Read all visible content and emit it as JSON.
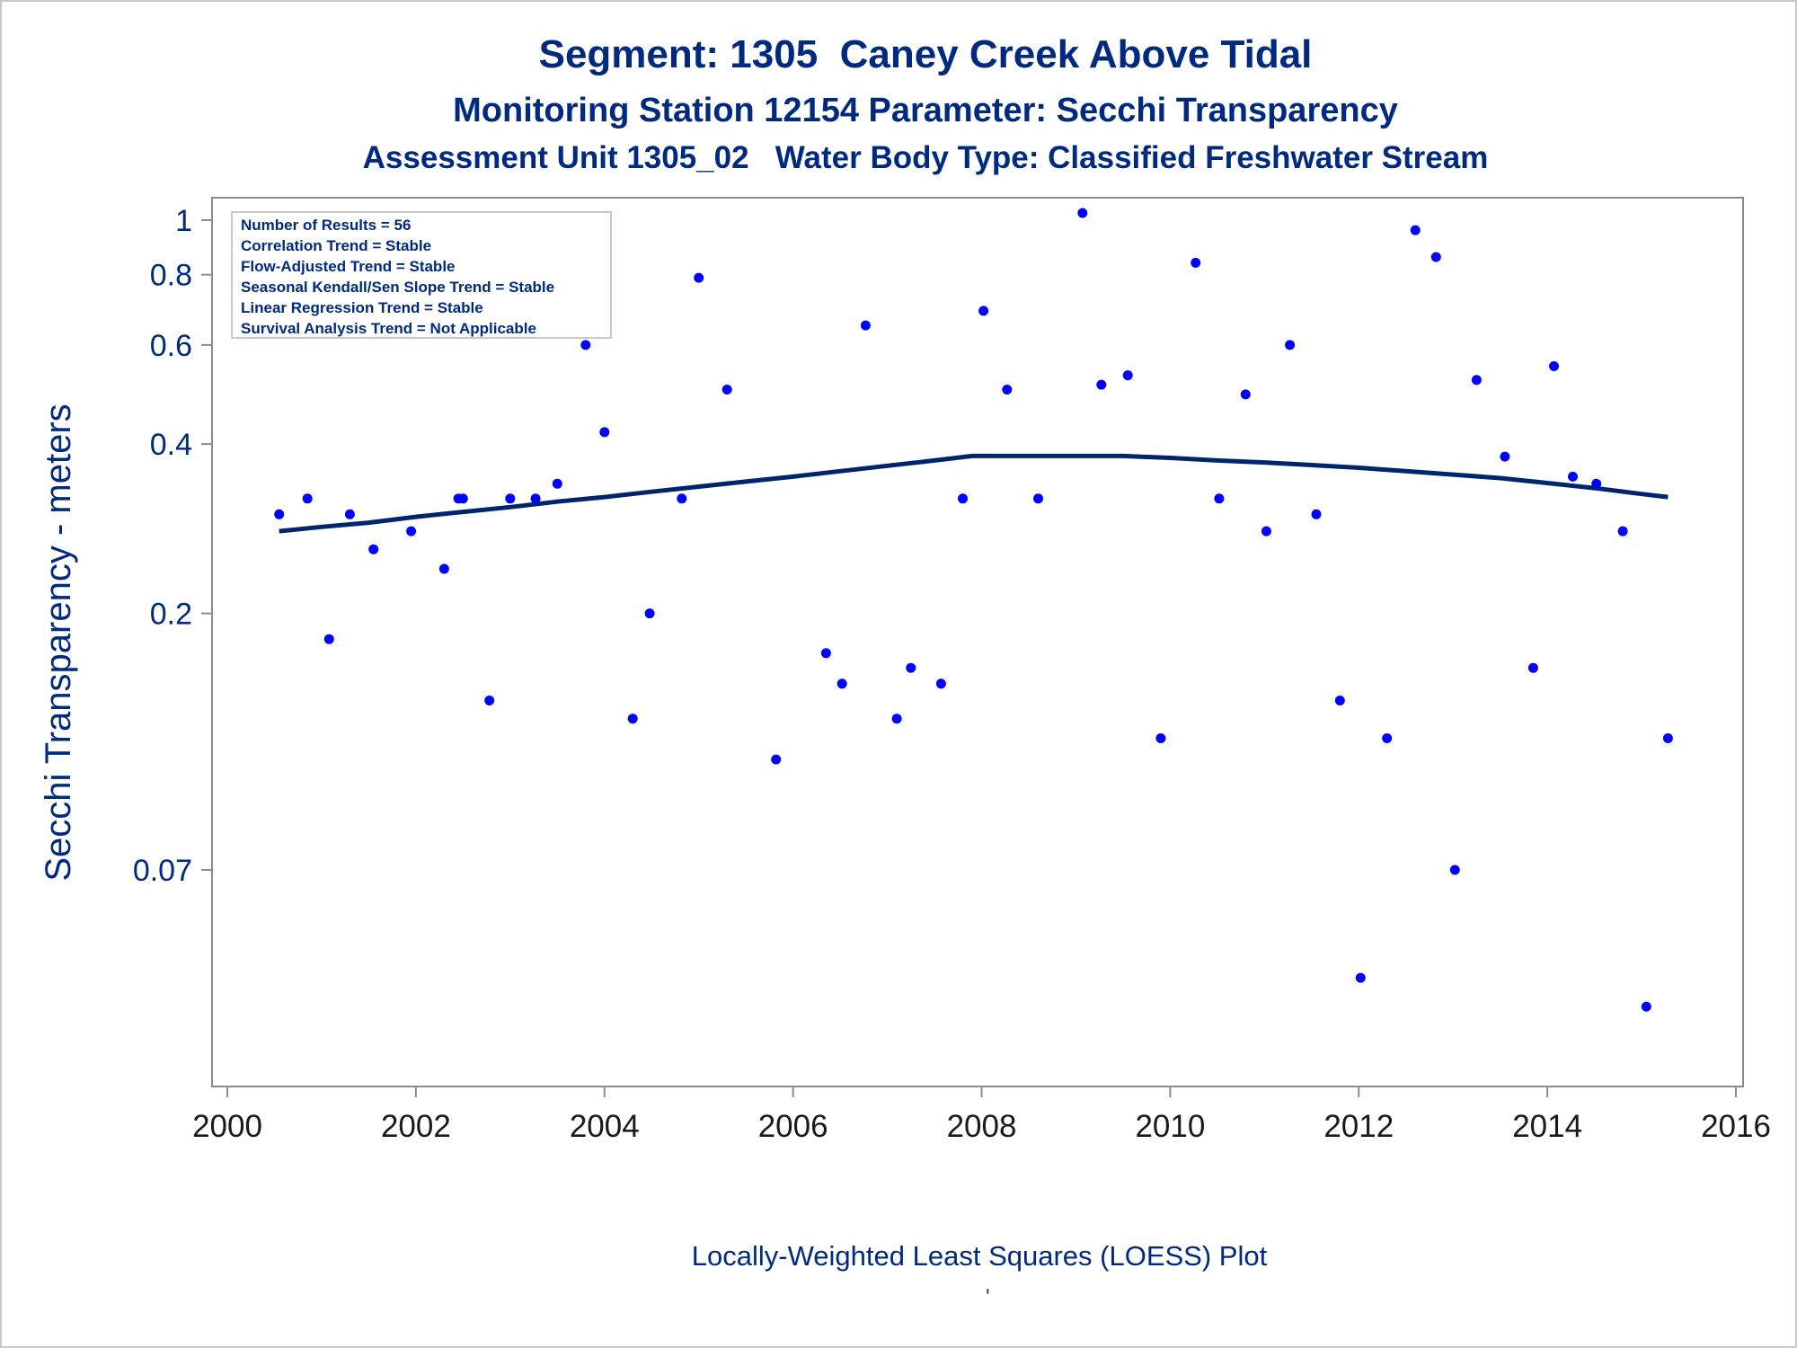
{
  "titles": {
    "line1": "Segment: 1305  Caney Creek Above Tidal",
    "line2": "Monitoring Station 12154 Parameter: Secchi Transparency",
    "line3": "Assessment Unit 1305_02   Water Body Type: Classified Freshwater Stream"
  },
  "footnote": "Locally-Weighted Least Squares (LOESS) Plot",
  "footnote_mark": "'",
  "colors": {
    "text": "#002a7f",
    "points": "#0000ff",
    "loess": "#00256e",
    "axis": "#8c8c8c"
  },
  "chart_data": {
    "type": "scatter",
    "xlabel": "",
    "ylabel": "Secchi Transparency - meters",
    "x_scale": "linear",
    "y_scale": "log",
    "xlim": [
      2000,
      2016
    ],
    "ylim": [
      0.04,
      1.05
    ],
    "x_ticks": [
      2000,
      2002,
      2004,
      2006,
      2008,
      2010,
      2012,
      2014,
      2016
    ],
    "y_ticks": [
      1,
      0.8,
      0.6,
      0.4,
      0.2,
      0.07
    ],
    "y_tick_labels": [
      "1",
      "0.8",
      "0.6",
      "0.4",
      "0.2",
      "0.07"
    ],
    "grid": false,
    "legend_position": "top-left",
    "stats_box": [
      "Number of Results = 56",
      "Correlation Trend = Stable",
      "Flow-Adjusted Trend = Stable",
      "Seasonal Kendall/Sen Slope Trend = Stable",
      "Linear Regression Trend = Stable",
      "Survival Analysis Trend = Not Applicable"
    ],
    "series": [
      {
        "kind": "points",
        "x": [
          2000.55,
          2000.85,
          2001.08,
          2001.3,
          2001.55,
          2001.95,
          2002.3,
          2002.45,
          2002.5,
          2002.78,
          2003.0,
          2003.27,
          2003.5,
          2003.8,
          2004.0,
          2004.3,
          2004.48,
          2004.82,
          2005.0,
          2005.3,
          2005.82,
          2006.35,
          2006.52,
          2006.77,
          2007.1,
          2007.25,
          2007.57,
          2007.8,
          2008.02,
          2008.27,
          2008.6,
          2009.07,
          2009.27,
          2009.55,
          2009.9,
          2010.27,
          2010.52,
          2010.8,
          2011.02,
          2011.27,
          2011.55,
          2011.8,
          2012.02,
          2012.3,
          2012.6,
          2012.82,
          2013.02,
          2013.25,
          2013.55,
          2013.85,
          2014.07,
          2014.27,
          2014.52,
          2014.8,
          2015.05,
          2015.28
        ],
        "y": [
          0.3,
          0.32,
          0.18,
          0.3,
          0.26,
          0.28,
          0.24,
          0.32,
          0.32,
          0.14,
          0.32,
          0.32,
          0.34,
          0.6,
          0.42,
          0.13,
          0.2,
          0.32,
          0.79,
          0.5,
          0.11,
          0.17,
          0.15,
          0.65,
          0.13,
          0.16,
          0.15,
          0.32,
          0.69,
          0.5,
          0.32,
          1.03,
          0.51,
          0.53,
          0.12,
          0.84,
          0.32,
          0.49,
          0.28,
          0.6,
          0.3,
          0.14,
          0.045,
          0.12,
          0.96,
          0.86,
          0.07,
          0.52,
          0.38,
          0.16,
          0.55,
          0.35,
          0.34,
          0.28,
          0.04,
          0.12
        ]
      },
      {
        "kind": "loess",
        "x": [
          2000.55,
          2001.0,
          2001.5,
          2002.0,
          2002.5,
          2003.0,
          2003.5,
          2004.0,
          2004.5,
          2005.0,
          2005.5,
          2006.0,
          2006.5,
          2007.0,
          2007.5,
          2007.9,
          2008.5,
          2009.0,
          2009.5,
          2010.0,
          2010.5,
          2011.0,
          2011.5,
          2012.0,
          2012.5,
          2013.0,
          2013.5,
          2014.0,
          2014.5,
          2015.0,
          2015.28
        ],
        "y": [
          0.28,
          0.285,
          0.29,
          0.297,
          0.303,
          0.309,
          0.316,
          0.322,
          0.329,
          0.336,
          0.343,
          0.35,
          0.358,
          0.366,
          0.374,
          0.381,
          0.381,
          0.381,
          0.381,
          0.378,
          0.374,
          0.371,
          0.367,
          0.363,
          0.358,
          0.353,
          0.348,
          0.341,
          0.334,
          0.326,
          0.322
        ]
      }
    ]
  }
}
